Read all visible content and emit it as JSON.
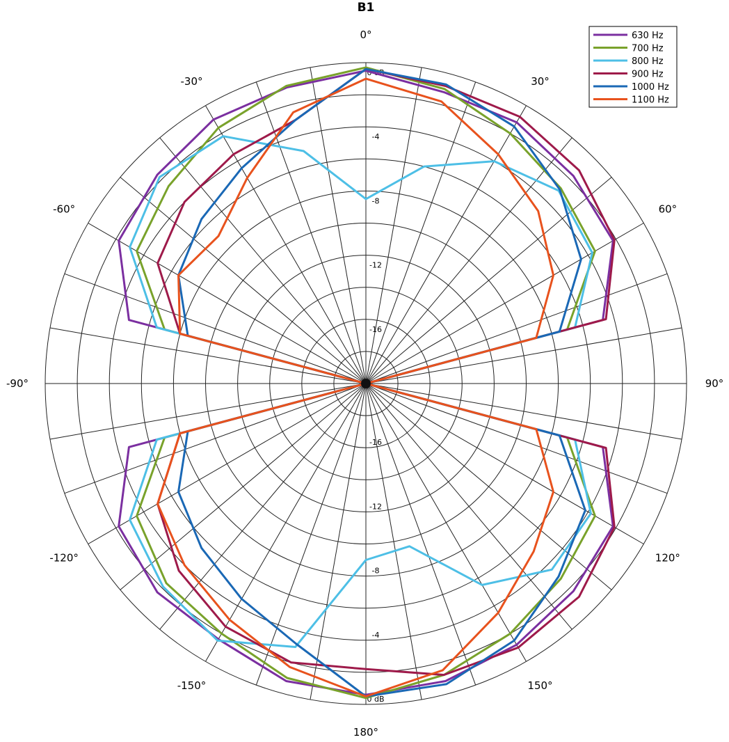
{
  "chart_data": {
    "type": "line",
    "projection": "polar",
    "title": "B1",
    "radial_axis": {
      "unit": "dB",
      "range": [
        -20,
        0
      ],
      "ring_labels_top": [
        "0 dB",
        "-4",
        "-8",
        "-12",
        "-16"
      ],
      "ring_labels_bottom": [
        "0 dB",
        "-4",
        "-8",
        "-12",
        "-16"
      ]
    },
    "angle_axis": {
      "zero_at": "top",
      "direction": "clockwise",
      "spoke_step_deg": 10,
      "tick_labels": [
        {
          "angle": 0,
          "text": "0°"
        },
        {
          "angle": 30,
          "text": "30°"
        },
        {
          "angle": 60,
          "text": "60°"
        },
        {
          "angle": 90,
          "text": "90°"
        },
        {
          "angle": 120,
          "text": "120°"
        },
        {
          "angle": 150,
          "text": "150°"
        },
        {
          "angle": 180,
          "text": "180°"
        },
        {
          "angle": -150,
          "text": "-150°"
        },
        {
          "angle": -120,
          "text": "-120°"
        },
        {
          "angle": -90,
          "text": "-90°"
        },
        {
          "angle": -60,
          "text": "-60°"
        },
        {
          "angle": -30,
          "text": "-30°"
        }
      ]
    },
    "grid": true,
    "legend": {
      "position": "top-right"
    },
    "x": [
      0,
      15,
      30,
      45,
      60,
      75,
      90,
      105,
      120,
      135,
      150,
      165,
      180,
      -165,
      -150,
      -135,
      -120,
      -105,
      -90,
      -75,
      -60,
      -45,
      -30,
      -15
    ],
    "series": [
      {
        "name": "630 Hz",
        "color": "#7b2fa0",
        "values": [
          -0.5,
          -1.2,
          -1.2,
          -1.7,
          -2.2,
          -4.7,
          -20,
          -4.7,
          -2.2,
          -1.7,
          -1.2,
          -0.8,
          -0.6,
          -0.8,
          -1.6,
          -1.6,
          -2.2,
          -4.7,
          -20,
          -4.7,
          -2.2,
          -1.6,
          -1.0,
          -0.9
        ]
      },
      {
        "name": "700 Hz",
        "color": "#79a22b",
        "values": [
          -0.3,
          -1.0,
          -2.0,
          -2.8,
          -3.5,
          -7.0,
          -20,
          -7.0,
          -3.5,
          -2.8,
          -2.0,
          -1.2,
          -0.4,
          -1.0,
          -2.0,
          -2.4,
          -3.5,
          -7.0,
          -20,
          -7.0,
          -3.5,
          -2.6,
          -1.6,
          -0.8
        ]
      },
      {
        "name": "800 Hz",
        "color": "#4dbfe6",
        "values": [
          -8.5,
          -6.0,
          -4.0,
          -3.0,
          -3.7,
          -6.5,
          -20,
          -6.5,
          -3.8,
          -3.6,
          -5.5,
          -9.5,
          -9.0,
          -3.0,
          -1.5,
          -2.1,
          -3.0,
          -6.5,
          -20,
          -6.5,
          -3.0,
          -1.8,
          -2.2,
          -5.0
        ]
      },
      {
        "name": "900 Hz",
        "color": "#9e1a4a",
        "values": [
          -0.4,
          -0.8,
          -0.8,
          -1.2,
          -2.1,
          -4.5,
          -20,
          -4.5,
          -2.1,
          -1.2,
          -1.0,
          -1.2,
          -2.2,
          -2.0,
          -2.5,
          -3.5,
          -5.0,
          -8.0,
          -20,
          -8.0,
          -5.0,
          -4.0,
          -3.5,
          -3.0
        ]
      },
      {
        "name": "1000 Hz",
        "color": "#1a68b5",
        "values": [
          -0.4,
          -0.7,
          -1.5,
          -2.9,
          -4.5,
          -7.5,
          -20,
          -7.5,
          -4.2,
          -3.0,
          -1.5,
          -0.6,
          -0.5,
          -3.2,
          -4.5,
          -5.5,
          -6.5,
          -8.5,
          -20,
          -8.5,
          -6.5,
          -5.5,
          -4.5,
          -3.0
        ]
      },
      {
        "name": "1100 Hz",
        "color": "#e8521d",
        "values": [
          -1.0,
          -1.8,
          -3.5,
          -4.8,
          -6.5,
          -9.0,
          -20,
          -9.0,
          -6.5,
          -5.2,
          -3.5,
          -1.5,
          -0.5,
          -1.7,
          -3.0,
          -4.0,
          -5.0,
          -8.0,
          -20,
          -8.0,
          -6.5,
          -7.0,
          -5.2,
          -2.5
        ]
      }
    ]
  }
}
